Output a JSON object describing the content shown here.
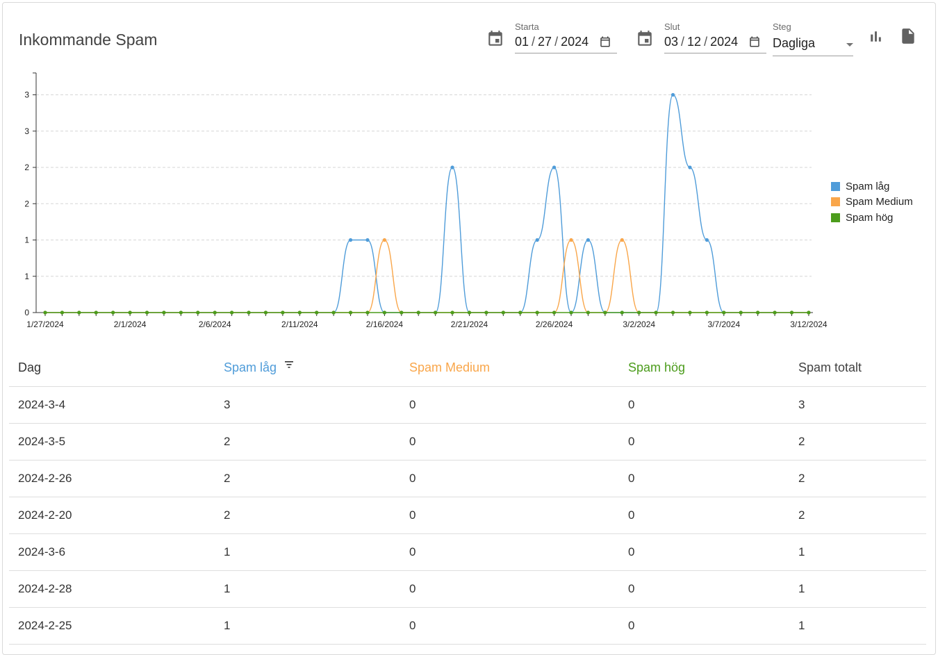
{
  "header": {
    "title": "Inkommande Spam"
  },
  "filters": {
    "start": {
      "label": "Starta",
      "month": "01",
      "day": "27",
      "year": "2024"
    },
    "end": {
      "label": "Slut",
      "month": "03",
      "day": "12",
      "year": "2024"
    },
    "step": {
      "label": "Steg",
      "value": "Dagliga"
    },
    "separator": "/"
  },
  "icons": {
    "start_calendar": "calendar-icon",
    "end_calendar": "calendar-icon",
    "chart_toggle": "bar-chart-icon",
    "export": "document-icon",
    "sort": "filter-sort-icon"
  },
  "colors": {
    "low": "#4f9cd9",
    "medium": "#f9a64a",
    "high": "#4c9c1c",
    "grid": "#d6d6d6",
    "axis": "#333333"
  },
  "chart_data": {
    "type": "line",
    "x": [
      "1/27/2024",
      "1/28/2024",
      "1/29/2024",
      "1/30/2024",
      "1/31/2024",
      "2/1/2024",
      "2/2/2024",
      "2/3/2024",
      "2/4/2024",
      "2/5/2024",
      "2/6/2024",
      "2/7/2024",
      "2/8/2024",
      "2/9/2024",
      "2/10/2024",
      "2/11/2024",
      "2/12/2024",
      "2/13/2024",
      "2/14/2024",
      "2/15/2024",
      "2/16/2024",
      "2/17/2024",
      "2/18/2024",
      "2/19/2024",
      "2/20/2024",
      "2/21/2024",
      "2/22/2024",
      "2/23/2024",
      "2/24/2024",
      "2/25/2024",
      "2/26/2024",
      "2/27/2024",
      "2/28/2024",
      "2/29/2024",
      "3/1/2024",
      "3/2/2024",
      "3/3/2024",
      "3/4/2024",
      "3/5/2024",
      "3/6/2024",
      "3/7/2024",
      "3/8/2024",
      "3/9/2024",
      "3/10/2024",
      "3/11/2024",
      "3/12/2024"
    ],
    "x_tick_labels": [
      "1/27/2024",
      "2/1/2024",
      "2/6/2024",
      "2/11/2024",
      "2/16/2024",
      "2/21/2024",
      "2/26/2024",
      "3/2/2024",
      "3/7/2024",
      "3/12/2024"
    ],
    "y_tick_labels": [
      "0",
      "1",
      "1",
      "2",
      "2",
      "3",
      "3"
    ],
    "ylim": [
      0,
      3.3
    ],
    "grid": true,
    "legend_position": "right",
    "series": [
      {
        "name": "Spam låg",
        "values": [
          0,
          0,
          0,
          0,
          0,
          0,
          0,
          0,
          0,
          0,
          0,
          0,
          0,
          0,
          0,
          0,
          0,
          0,
          1,
          1,
          0,
          0,
          0,
          0,
          2,
          0,
          0,
          0,
          0,
          1,
          2,
          0,
          1,
          0,
          0,
          0,
          0,
          3,
          2,
          1,
          0,
          0,
          0,
          0,
          0,
          0
        ]
      },
      {
        "name": "Spam Medium",
        "values": [
          0,
          0,
          0,
          0,
          0,
          0,
          0,
          0,
          0,
          0,
          0,
          0,
          0,
          0,
          0,
          0,
          0,
          0,
          0,
          0,
          1,
          0,
          0,
          0,
          0,
          0,
          0,
          0,
          0,
          0,
          0,
          1,
          0,
          0,
          1,
          0,
          0,
          0,
          0,
          0,
          0,
          0,
          0,
          0,
          0,
          0
        ]
      },
      {
        "name": "Spam hög",
        "values": [
          0,
          0,
          0,
          0,
          0,
          0,
          0,
          0,
          0,
          0,
          0,
          0,
          0,
          0,
          0,
          0,
          0,
          0,
          0,
          0,
          0,
          0,
          0,
          0,
          0,
          0,
          0,
          0,
          0,
          0,
          0,
          0,
          0,
          0,
          0,
          0,
          0,
          0,
          0,
          0,
          0,
          0,
          0,
          0,
          0,
          0
        ]
      }
    ]
  },
  "table": {
    "headers": {
      "day": "Dag",
      "low": "Spam låg",
      "medium": "Spam Medium",
      "high": "Spam hög",
      "total": "Spam totalt"
    },
    "rows": [
      {
        "day": "2024-3-4",
        "low": "3",
        "medium": "0",
        "high": "0",
        "total": "3"
      },
      {
        "day": "2024-3-5",
        "low": "2",
        "medium": "0",
        "high": "0",
        "total": "2"
      },
      {
        "day": "2024-2-26",
        "low": "2",
        "medium": "0",
        "high": "0",
        "total": "2"
      },
      {
        "day": "2024-2-20",
        "low": "2",
        "medium": "0",
        "high": "0",
        "total": "2"
      },
      {
        "day": "2024-3-6",
        "low": "1",
        "medium": "0",
        "high": "0",
        "total": "1"
      },
      {
        "day": "2024-2-28",
        "low": "1",
        "medium": "0",
        "high": "0",
        "total": "1"
      },
      {
        "day": "2024-2-25",
        "low": "1",
        "medium": "0",
        "high": "0",
        "total": "1"
      }
    ]
  }
}
